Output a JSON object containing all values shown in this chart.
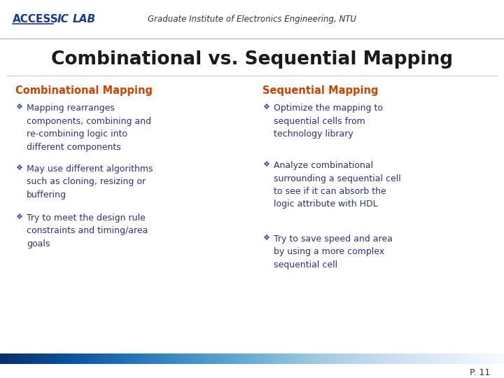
{
  "title": "Combinational vs. Sequential Mapping",
  "header_sub": "Graduate Institute of Electronics Engineering, NTU",
  "title_color": "#1a1a1a",
  "section_color": "#cc4400",
  "bullet_color": "#2e3080",
  "header_text_color": "#1a3a8f",
  "bg_color": "#ffffff",
  "page_num": "P. 11",
  "left_heading": "Combinational Mapping",
  "right_heading": "Sequential Mapping",
  "left_bullets": [
    "Mapping rearranges\ncomponents, combining and\nre-combining logic into\ndifferent components",
    "May use different algorithms\nsuch as cloning, resizing or\nbuffering",
    "Try to meet the design rule\nconstraints and timing/area\ngoals"
  ],
  "right_bullets": [
    "Optimize the mapping to\nsequential cells from\ntechnology library",
    "Analyze combinational\nsurrounding a sequential cell\nto see if it can absorb the\nlogic attribute with HDL",
    "Try to save speed and area\nby using a more complex\nsequential cell"
  ]
}
